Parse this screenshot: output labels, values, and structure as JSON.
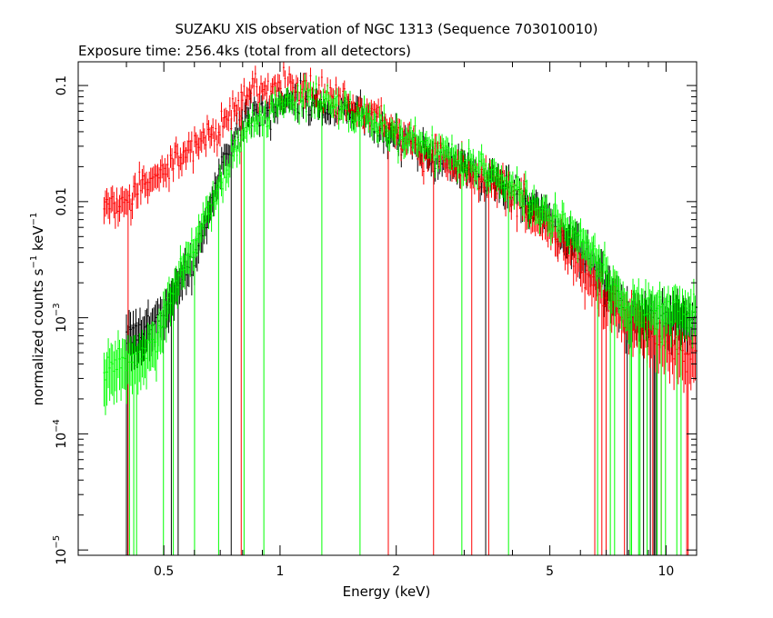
{
  "chart_data": {
    "type": "scatter",
    "title": "SUZAKU XIS observation of NGC 1313 (Sequence 703010010)",
    "subtitle": "Exposure time: 256.4ks (total from all detectors)",
    "xlabel": "Energy (keV)",
    "ylabel": {
      "main": "normalized counts s",
      "exp1": "−1",
      "mid": " keV",
      "exp2": "−1"
    },
    "x_scale": "log",
    "y_scale": "log",
    "xlim": [
      0.3,
      12
    ],
    "ylim": [
      9e-06,
      0.16
    ],
    "x_ticks": [
      {
        "value": 0.5,
        "label": "0.5"
      },
      {
        "value": 1,
        "label": "1"
      },
      {
        "value": 2,
        "label": "2"
      },
      {
        "value": 5,
        "label": "5"
      },
      {
        "value": 10,
        "label": "10"
      }
    ],
    "y_ticks": [
      {
        "value": 1e-05,
        "base": "10",
        "exp": "−5",
        "label": ""
      },
      {
        "value": 0.0001,
        "base": "10",
        "exp": "−4",
        "label": ""
      },
      {
        "value": 0.001,
        "base": "10",
        "exp": "−3",
        "label": ""
      },
      {
        "value": 0.01,
        "base": "",
        "exp": "",
        "label": "0.01"
      },
      {
        "value": 0.1,
        "base": "",
        "exp": "",
        "label": "0.1"
      }
    ],
    "grid": false,
    "series": [
      {
        "color": "#000000",
        "errorbars": true,
        "x": [
          0.4,
          0.45,
          0.5,
          0.55,
          0.6,
          0.7,
          0.8,
          1.0,
          1.2,
          1.5,
          2.0,
          2.5,
          3.0,
          4.0,
          5.0,
          6.0,
          7.0,
          8.0
        ],
        "y": [
          0.0006,
          0.0008,
          0.001,
          0.002,
          0.003,
          0.02,
          0.05,
          0.07,
          0.07,
          0.06,
          0.035,
          0.025,
          0.02,
          0.012,
          0.007,
          0.004,
          0.002,
          0.001
        ]
      },
      {
        "color": "#ff0000",
        "errorbars": true,
        "x": [
          0.35,
          0.4,
          0.45,
          0.5,
          0.55,
          0.6,
          0.7,
          0.8,
          0.9,
          1.0,
          1.2,
          1.5,
          2.0,
          2.5,
          3.0,
          4.0,
          5.0,
          6.0,
          7.0,
          8.0,
          9.0,
          10.0,
          11.0
        ],
        "y": [
          0.01,
          0.01,
          0.015,
          0.02,
          0.025,
          0.03,
          0.045,
          0.08,
          0.1,
          0.1,
          0.09,
          0.07,
          0.04,
          0.025,
          0.02,
          0.012,
          0.006,
          0.003,
          0.0015,
          0.001,
          0.0008,
          0.0006,
          0.0005
        ]
      },
      {
        "color": "#00ff00",
        "errorbars": true,
        "x": [
          0.35,
          0.45,
          0.5,
          0.55,
          0.6,
          0.7,
          0.8,
          1.0,
          1.2,
          1.5,
          2.0,
          2.5,
          3.0,
          4.0,
          5.0,
          6.0,
          7.0,
          8.0
        ],
        "y": [
          0.00035,
          0.0005,
          0.001,
          0.0025,
          0.004,
          0.015,
          0.04,
          0.07,
          0.075,
          0.065,
          0.04,
          0.028,
          0.022,
          0.014,
          0.008,
          0.005,
          0.0025,
          0.0012
        ]
      }
    ]
  }
}
